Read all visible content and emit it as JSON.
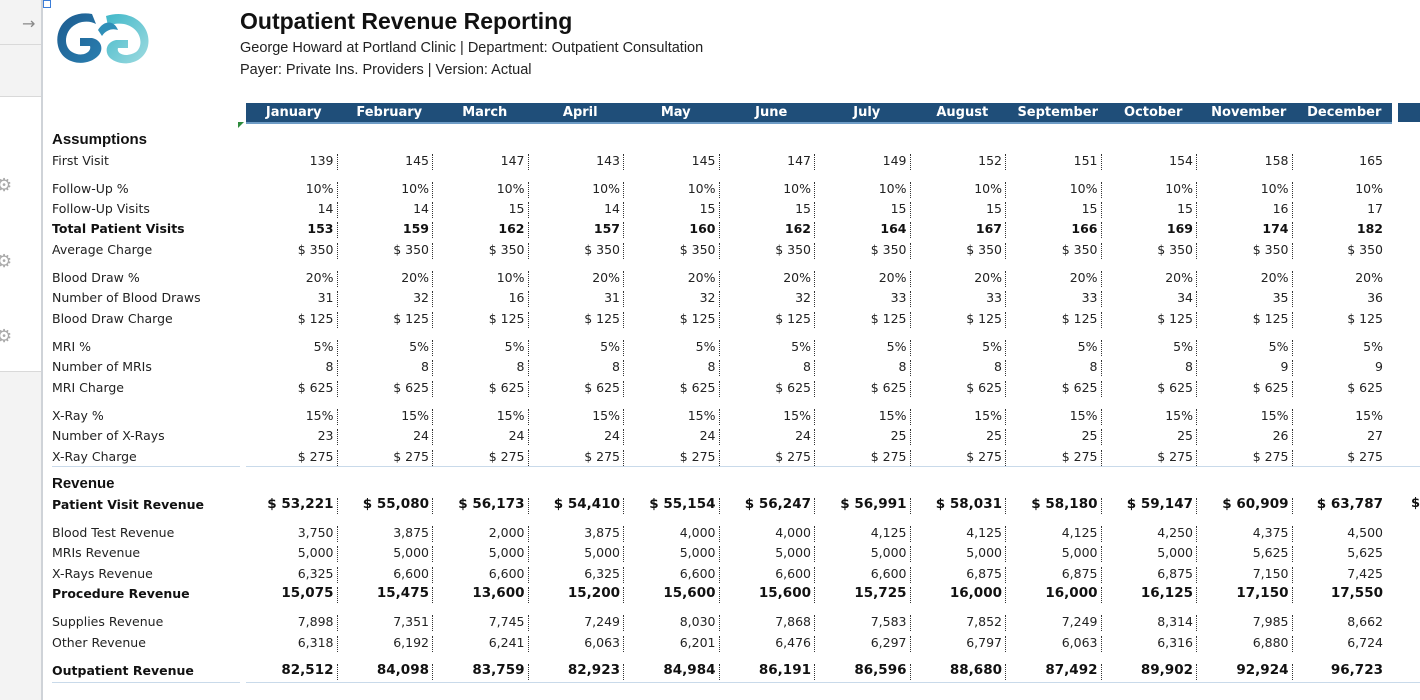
{
  "header": {
    "title": "Outpatient Revenue Reporting",
    "subtitle_1": "George Howard at Portland Clinic | Department: Outpatient Consultation",
    "subtitle_2": "Payer: Private Ins. Providers | Version: Actual"
  },
  "colors": {
    "header_bar": "#1f4e79",
    "logo_dark": "#1d5b8f",
    "logo_light": "#41b8c9"
  },
  "icons": {
    "sidebar_arrow": "→",
    "gear": "⚙"
  },
  "months": [
    "January",
    "February",
    "March",
    "April",
    "May",
    "June",
    "July",
    "August",
    "September",
    "October",
    "November",
    "December"
  ],
  "sections": {
    "assumptions": "Assumptions",
    "revenue": "Revenue"
  },
  "rows": [
    {
      "label": "First Visit",
      "bold": false,
      "values": [
        "139",
        "145",
        "147",
        "143",
        "145",
        "147",
        "149",
        "152",
        "151",
        "154",
        "158",
        "165"
      ]
    },
    {
      "label": "Follow-Up %",
      "bold": false,
      "values": [
        "10%",
        "10%",
        "10%",
        "10%",
        "10%",
        "10%",
        "10%",
        "10%",
        "10%",
        "10%",
        "10%",
        "10%"
      ]
    },
    {
      "label": "Follow-Up Visits",
      "bold": false,
      "values": [
        "14",
        "14",
        "15",
        "14",
        "15",
        "15",
        "15",
        "15",
        "15",
        "15",
        "16",
        "17"
      ]
    },
    {
      "label": "Total Patient Visits",
      "bold": true,
      "values": [
        "153",
        "159",
        "162",
        "157",
        "160",
        "162",
        "164",
        "167",
        "166",
        "169",
        "174",
        "182"
      ]
    },
    {
      "label": "Average Charge",
      "bold": false,
      "values": [
        "$ 350",
        "$ 350",
        "$ 350",
        "$ 350",
        "$ 350",
        "$ 350",
        "$ 350",
        "$ 350",
        "$ 350",
        "$ 350",
        "$ 350",
        "$ 350"
      ]
    },
    {
      "label": "Blood Draw %",
      "bold": false,
      "values": [
        "20%",
        "20%",
        "10%",
        "20%",
        "20%",
        "20%",
        "20%",
        "20%",
        "20%",
        "20%",
        "20%",
        "20%"
      ]
    },
    {
      "label": "Number of  Blood Draws",
      "bold": false,
      "values": [
        "31",
        "32",
        "16",
        "31",
        "32",
        "32",
        "33",
        "33",
        "33",
        "34",
        "35",
        "36"
      ]
    },
    {
      "label": "Blood Draw Charge",
      "bold": false,
      "values": [
        "$ 125",
        "$ 125",
        "$ 125",
        "$ 125",
        "$ 125",
        "$ 125",
        "$ 125",
        "$ 125",
        "$ 125",
        "$ 125",
        "$ 125",
        "$ 125"
      ]
    },
    {
      "label": "MRI %",
      "bold": false,
      "values": [
        "5%",
        "5%",
        "5%",
        "5%",
        "5%",
        "5%",
        "5%",
        "5%",
        "5%",
        "5%",
        "5%",
        "5%"
      ]
    },
    {
      "label": "Number of MRIs",
      "bold": false,
      "values": [
        "8",
        "8",
        "8",
        "8",
        "8",
        "8",
        "8",
        "8",
        "8",
        "8",
        "9",
        "9"
      ]
    },
    {
      "label": "MRI Charge",
      "bold": false,
      "values": [
        "$ 625",
        "$ 625",
        "$ 625",
        "$ 625",
        "$ 625",
        "$ 625",
        "$ 625",
        "$ 625",
        "$ 625",
        "$ 625",
        "$ 625",
        "$ 625"
      ]
    },
    {
      "label": "X-Ray %",
      "bold": false,
      "values": [
        "15%",
        "15%",
        "15%",
        "15%",
        "15%",
        "15%",
        "15%",
        "15%",
        "15%",
        "15%",
        "15%",
        "15%"
      ]
    },
    {
      "label": "Number of X-Rays",
      "bold": false,
      "values": [
        "23",
        "24",
        "24",
        "24",
        "24",
        "24",
        "25",
        "25",
        "25",
        "25",
        "26",
        "27"
      ]
    },
    {
      "label": "X-Ray Charge",
      "bold": false,
      "values": [
        "$ 275",
        "$ 275",
        "$ 275",
        "$ 275",
        "$ 275",
        "$ 275",
        "$ 275",
        "$ 275",
        "$ 275",
        "$ 275",
        "$ 275",
        "$ 275"
      ]
    },
    {
      "label": "Patient Visit Revenue",
      "bold": true,
      "large": true,
      "values": [
        "$ 53,221",
        "$ 55,080",
        "$ 56,173",
        "$ 54,410",
        "$ 55,154",
        "$ 56,247",
        "$ 56,991",
        "$ 58,031",
        "$ 58,180",
        "$ 59,147",
        "$ 60,909",
        "$ 63,787"
      ],
      "overflow": "$"
    },
    {
      "label": "Blood Test Revenue",
      "bold": false,
      "values": [
        "3,750",
        "3,875",
        "2,000",
        "3,875",
        "4,000",
        "4,000",
        "4,125",
        "4,125",
        "4,125",
        "4,250",
        "4,375",
        "4,500"
      ]
    },
    {
      "label": "MRIs Revenue",
      "bold": false,
      "values": [
        "5,000",
        "5,000",
        "5,000",
        "5,000",
        "5,000",
        "5,000",
        "5,000",
        "5,000",
        "5,000",
        "5,000",
        "5,625",
        "5,625"
      ]
    },
    {
      "label": "X-Rays Revenue",
      "bold": false,
      "values": [
        "6,325",
        "6,600",
        "6,600",
        "6,325",
        "6,600",
        "6,600",
        "6,600",
        "6,875",
        "6,875",
        "6,875",
        "7,150",
        "7,425"
      ]
    },
    {
      "label": "Procedure Revenue",
      "bold": true,
      "large": true,
      "values": [
        "15,075",
        "15,475",
        "13,600",
        "15,200",
        "15,600",
        "15,600",
        "15,725",
        "16,000",
        "16,000",
        "16,125",
        "17,150",
        "17,550"
      ]
    },
    {
      "label": "Supplies Revenue",
      "bold": false,
      "values": [
        "7,898",
        "7,351",
        "7,745",
        "7,249",
        "8,030",
        "7,868",
        "7,583",
        "7,852",
        "7,249",
        "8,314",
        "7,985",
        "8,662"
      ]
    },
    {
      "label": "Other Revenue",
      "bold": false,
      "values": [
        "6,318",
        "6,192",
        "6,241",
        "6,063",
        "6,201",
        "6,476",
        "6,297",
        "6,797",
        "6,063",
        "6,316",
        "6,880",
        "6,724"
      ]
    },
    {
      "label": "Outpatient Revenue",
      "bold": true,
      "large": true,
      "values": [
        "82,512",
        "84,098",
        "83,759",
        "82,923",
        "84,984",
        "86,191",
        "86,596",
        "88,680",
        "87,492",
        "89,902",
        "92,924",
        "96,723"
      ]
    }
  ]
}
